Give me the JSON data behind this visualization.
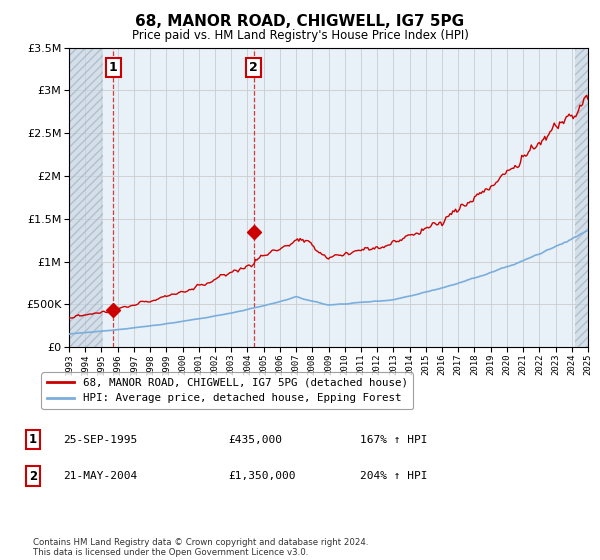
{
  "title": "68, MANOR ROAD, CHIGWELL, IG7 5PG",
  "subtitle": "Price paid vs. HM Land Registry's House Price Index (HPI)",
  "legend_line1": "68, MANOR ROAD, CHIGWELL, IG7 5PG (detached house)",
  "legend_line2": "HPI: Average price, detached house, Epping Forest",
  "footnote": "Contains HM Land Registry data © Crown copyright and database right 2024.\nThis data is licensed under the Open Government Licence v3.0.",
  "sale1_label": "1",
  "sale1_date": "25-SEP-1995",
  "sale1_price": "£435,000",
  "sale1_hpi": "167% ↑ HPI",
  "sale1_year": 1995.73,
  "sale1_value": 435000,
  "sale2_label": "2",
  "sale2_date": "21-MAY-2004",
  "sale2_price": "£1,350,000",
  "sale2_hpi": "204% ↑ HPI",
  "sale2_year": 2004.38,
  "sale2_value": 1350000,
  "xmin": 1993,
  "xmax": 2025,
  "ymin": 0,
  "ymax": 3500000,
  "hatch_left_end": 1995.1,
  "hatch_right_start": 2024.2,
  "red_line_color": "#cc0000",
  "blue_line_color": "#7aaedc",
  "grid_color": "#cccccc",
  "plot_bg_color": "#e8f0f8"
}
